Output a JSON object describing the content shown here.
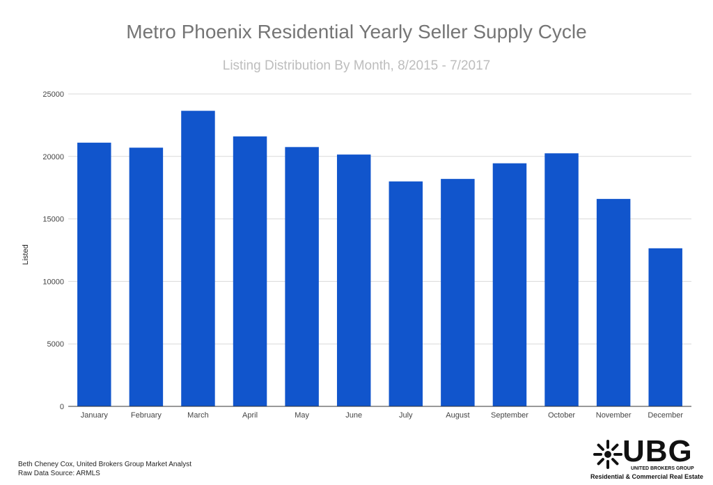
{
  "chart_data": {
    "type": "bar",
    "title": "Metro Phoenix Residential Yearly Seller Supply Cycle",
    "subtitle": "Listing Distribution By Month, 8/2015 - 7/2017",
    "xlabel": "",
    "ylabel": "Listed",
    "ylim": [
      0,
      25000
    ],
    "yticks": [
      0,
      5000,
      10000,
      15000,
      20000,
      25000
    ],
    "grid": true,
    "legend": "none",
    "bar_color": "#1155cc",
    "categories": [
      "January",
      "February",
      "March",
      "April",
      "May",
      "June",
      "July",
      "August",
      "September",
      "October",
      "November",
      "December"
    ],
    "values": [
      21100,
      20700,
      23650,
      21600,
      20750,
      20150,
      18000,
      18200,
      19450,
      20250,
      16600,
      12650
    ]
  },
  "footer": {
    "credit_line": "Beth Cheney Cox, United Brokers Group Market Analyst",
    "source_line": "Raw Data Source:  ARMLS"
  },
  "logo": {
    "wordmark": "UBG",
    "company": "UNITED BROKERS GROUP",
    "tagline": "Residential & Commercial Real Estate"
  }
}
